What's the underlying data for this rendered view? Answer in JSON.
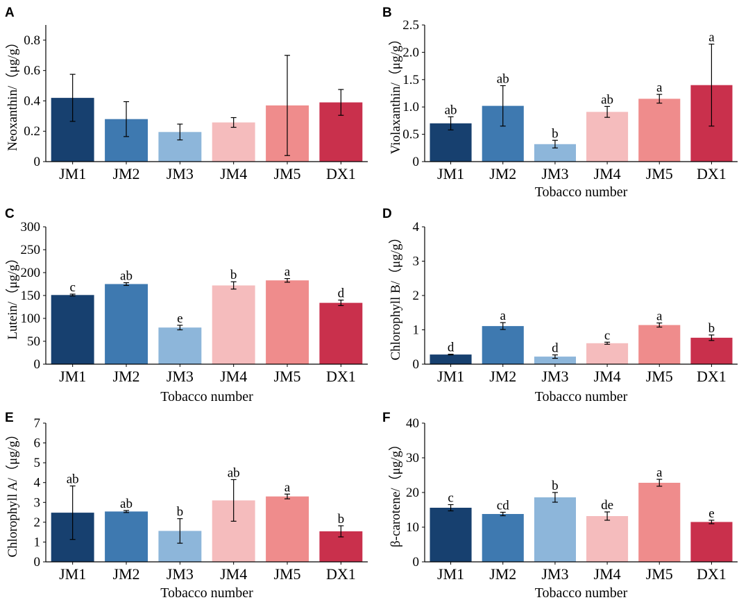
{
  "figure": {
    "colors": [
      "#17406f",
      "#3e79b0",
      "#8db6da",
      "#f5bcbd",
      "#ef8c8c",
      "#c9304c"
    ]
  },
  "chart_data": [
    {
      "panel": "A",
      "type": "bar",
      "categories": [
        "JM1",
        "JM2",
        "JM3",
        "JM4",
        "JM5",
        "DX1"
      ],
      "values": [
        0.42,
        0.28,
        0.195,
        0.258,
        0.37,
        0.39
      ],
      "errors": [
        0.155,
        0.115,
        0.052,
        0.032,
        0.33,
        0.085
      ],
      "sig_labels": [
        "",
        "",
        "",
        "",
        "",
        ""
      ],
      "ylim": [
        0,
        0.9
      ],
      "yticks": [
        0,
        0.2,
        0.4,
        0.6,
        0.8
      ],
      "ytick_labels": [
        "0",
        "0.2",
        "0.4",
        "0.6",
        "0.8"
      ],
      "ylabel": "Neoxanthin/（μg/g）",
      "xlabel": ""
    },
    {
      "panel": "B",
      "type": "bar",
      "categories": [
        "JM1",
        "JM2",
        "JM3",
        "JM4",
        "JM5",
        "DX1"
      ],
      "values": [
        0.7,
        1.02,
        0.32,
        0.91,
        1.15,
        1.4
      ],
      "errors": [
        0.12,
        0.37,
        0.07,
        0.1,
        0.08,
        0.75
      ],
      "sig_labels": [
        "ab",
        "ab",
        "b",
        "ab",
        "a",
        "a"
      ],
      "ylim": [
        0,
        2.5
      ],
      "yticks": [
        0,
        0.5,
        1.0,
        1.5,
        2.0,
        2.5
      ],
      "ytick_labels": [
        "0",
        "0.5",
        "1.0",
        "1.5",
        "2.0",
        "2.5"
      ],
      "ylabel": "Violaxanthin/（μg/g）",
      "xlabel": "Tobacco number"
    },
    {
      "panel": "C",
      "type": "bar",
      "categories": [
        "JM1",
        "JM2",
        "JM3",
        "JM4",
        "JM5",
        "DX1"
      ],
      "values": [
        151,
        175,
        80,
        172,
        183,
        134
      ],
      "errors": [
        2,
        3,
        5,
        8,
        4,
        6
      ],
      "sig_labels": [
        "c",
        "ab",
        "e",
        "b",
        "a",
        "d"
      ],
      "ylim": [
        0,
        300
      ],
      "yticks": [
        0,
        50,
        100,
        150,
        200,
        250,
        300
      ],
      "ytick_labels": [
        "0",
        "50",
        "100",
        "150",
        "200",
        "250",
        "300"
      ],
      "ylabel": "Lutein/（μg/g）",
      "xlabel": "Tobacco number"
    },
    {
      "panel": "D",
      "type": "bar",
      "categories": [
        "JM1",
        "JM2",
        "JM3",
        "JM4",
        "JM5",
        "DX1"
      ],
      "values": [
        0.28,
        1.11,
        0.22,
        0.61,
        1.14,
        0.77
      ],
      "errors": [
        0.01,
        0.1,
        0.05,
        0.03,
        0.06,
        0.08
      ],
      "sig_labels": [
        "d",
        "a",
        "d",
        "c",
        "a",
        "b"
      ],
      "ylim": [
        0,
        4
      ],
      "yticks": [
        0,
        1,
        2,
        3,
        4
      ],
      "ytick_labels": [
        "0",
        "1",
        "2",
        "3",
        "4"
      ],
      "ylabel": "Chlorophyll B/（μg/g）",
      "xlabel": "Tobacco number"
    },
    {
      "panel": "E",
      "type": "bar",
      "categories": [
        "JM1",
        "JM2",
        "JM3",
        "JM4",
        "JM5",
        "DX1"
      ],
      "values": [
        2.48,
        2.54,
        1.56,
        3.1,
        3.3,
        1.54
      ],
      "errors": [
        1.35,
        0.05,
        0.62,
        1.05,
        0.12,
        0.28
      ],
      "sig_labels": [
        "ab",
        "ab",
        "b",
        "ab",
        "a",
        "b"
      ],
      "ylim": [
        0,
        7
      ],
      "yticks": [
        0,
        1,
        2,
        3,
        4,
        5,
        6,
        7
      ],
      "ytick_labels": [
        "0",
        "1",
        "2",
        "3",
        "4",
        "5",
        "6",
        "7"
      ],
      "ylabel": "Chlorophyll A/（μg/g）",
      "xlabel": "Tobacco number"
    },
    {
      "panel": "F",
      "type": "bar",
      "categories": [
        "JM1",
        "JM2",
        "JM3",
        "JM4",
        "JM5",
        "DX1"
      ],
      "values": [
        15.6,
        13.8,
        18.6,
        13.2,
        22.8,
        11.5
      ],
      "errors": [
        0.9,
        0.5,
        1.4,
        1.2,
        1.0,
        0.5
      ],
      "sig_labels": [
        "c",
        "cd",
        "b",
        "de",
        "a",
        "e"
      ],
      "ylim": [
        0,
        40
      ],
      "yticks": [
        0,
        10,
        20,
        30,
        40
      ],
      "ytick_labels": [
        "0",
        "10",
        "20",
        "30",
        "40"
      ],
      "ylabel": "β-carotene/（μg/g）",
      "xlabel": "Tobacco number"
    }
  ]
}
